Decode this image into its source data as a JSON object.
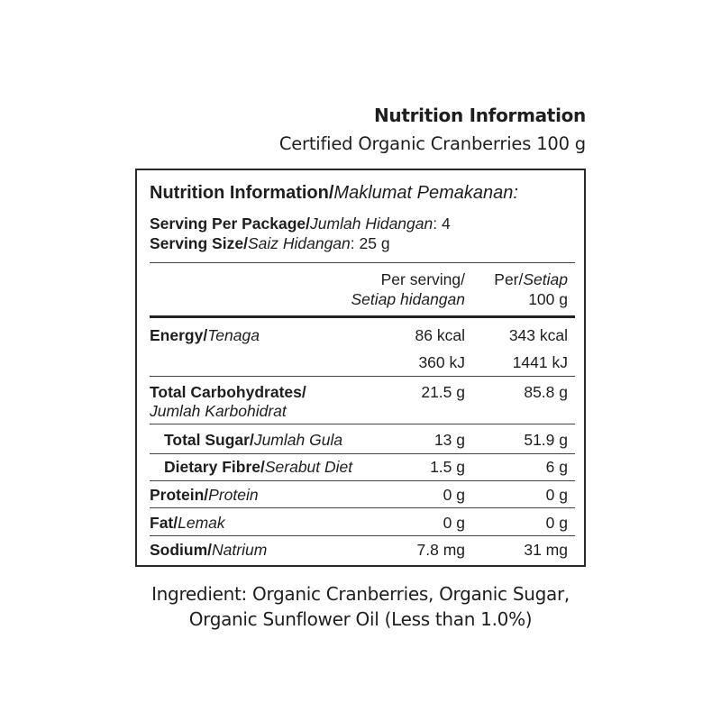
{
  "header": {
    "title": "Nutrition Information",
    "subtitle": "Certified Organic Cranberries 100 g"
  },
  "panel": {
    "heading_en": "Nutrition Information/",
    "heading_ms": "Maklumat Pemakanan:",
    "servings_en": "Serving Per Package/",
    "servings_ms": "Jumlah Hidangan",
    "servings_value": ": 4",
    "size_en": "Serving Size/",
    "size_ms": "Saiz Hidangan",
    "size_value": ": 25 g",
    "col1_line1": "Per serving/",
    "col1_line2": "Setiap hidangan",
    "col2_line1_en": "Per/",
    "col2_line1_ms": "Setiap",
    "col2_line2": "100 g",
    "rows": [
      {
        "en": "Energy/",
        "ms": "Tenaga",
        "per_serving": "86 kcal",
        "per_100g": "343 kcal"
      },
      {
        "en": "",
        "ms": "",
        "per_serving": "360 kJ",
        "per_100g": "1441 kJ"
      },
      {
        "en": "Total Carbohydrates/",
        "ms": "Jumlah Karbohidrat",
        "per_serving": "21.5 g",
        "per_100g": "85.8 g"
      },
      {
        "en": "Total Sugar/",
        "ms": "Jumlah Gula",
        "per_serving": "13 g",
        "per_100g": "51.9 g"
      },
      {
        "en": "Dietary Fibre/",
        "ms": "Serabut Diet",
        "per_serving": "1.5 g",
        "per_100g": "6 g"
      },
      {
        "en": "Protein/",
        "ms": "Protein",
        "per_serving": "0 g",
        "per_100g": "0 g"
      },
      {
        "en": "Fat/",
        "ms": "Lemak",
        "per_serving": "0 g",
        "per_100g": "0 g"
      },
      {
        "en": "Sodium/",
        "ms": "Natrium",
        "per_serving": "7.8 mg",
        "per_100g": "31 mg"
      }
    ]
  },
  "ingredients": {
    "line1": "Ingredient: Organic Cranberries, Organic Sugar,",
    "line2": "Organic Sunflower Oil (Less than 1.0%)"
  }
}
